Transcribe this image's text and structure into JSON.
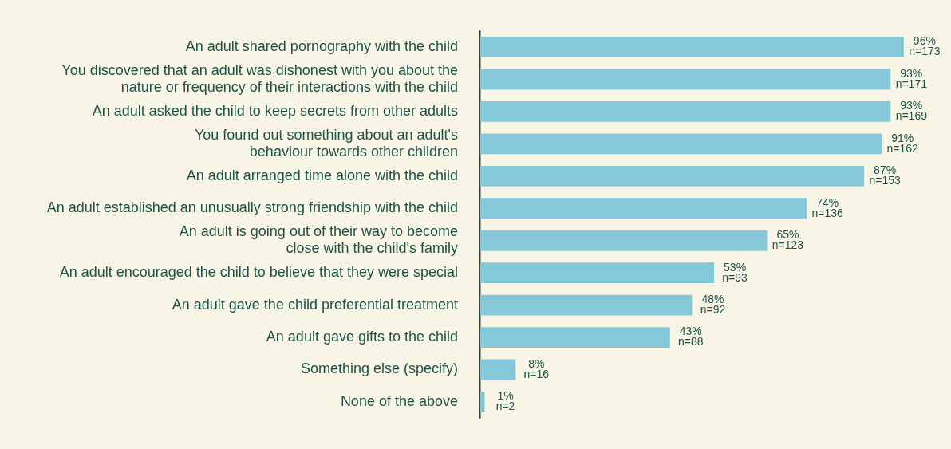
{
  "chart_data": {
    "type": "bar",
    "orientation": "horizontal",
    "categories": [
      "An adult shared pornography with the child",
      "You discovered that an adult was dishonest with you about the\nnature or frequency of their interactions with the child",
      "An adult asked the child to keep secrets from other adults",
      "You found out something about an adult's\nbehaviour towards other children",
      "An adult arranged time alone with the child",
      "An adult established an unusually strong friendship with the child",
      "An adult is going out of their way to become\nclose with the child's family",
      "An adult encouraged the child to believe that they were special",
      "An adult gave the child preferential treatment",
      "An adult gave gifts to the child",
      "Something else (specify)",
      "None of the above"
    ],
    "values": [
      96,
      93,
      93,
      91,
      87,
      74,
      65,
      53,
      48,
      43,
      8,
      1
    ],
    "value_labels": [
      "96%\nn=173",
      "93%\nn=171",
      "93%\nn=169",
      "91%\nn=162",
      "87%\nn=153",
      "74%\nn=136",
      "65%\nn=123",
      "53%\nn=93",
      "48%\nn=92",
      "43%\nn=88",
      "8%\nn=16",
      "1%\nn=2"
    ],
    "color": "#86c7d8",
    "grid": false,
    "legend": false
  }
}
